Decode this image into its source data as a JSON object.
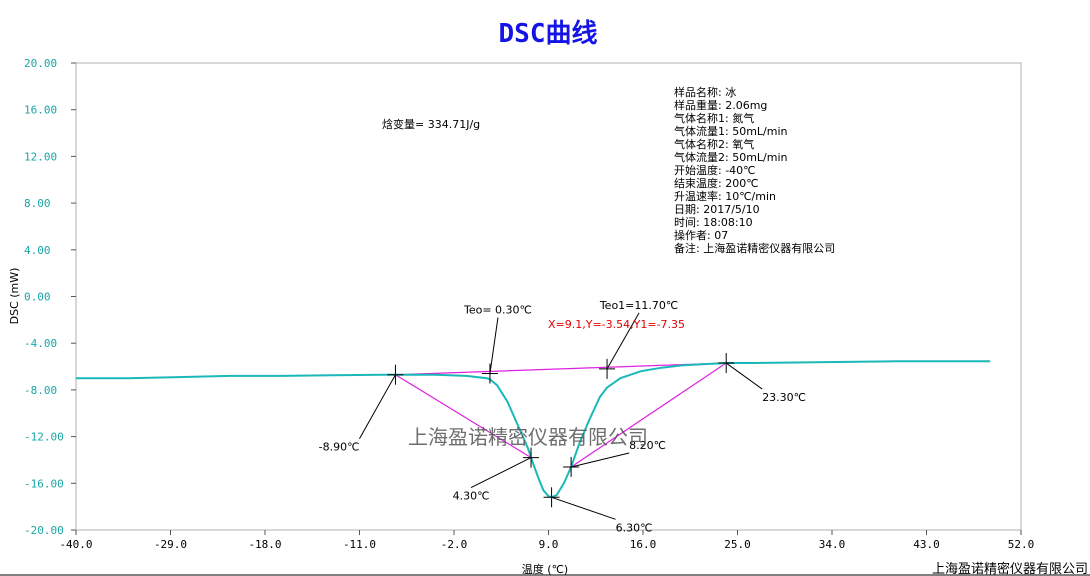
{
  "chart_data": {
    "type": "line",
    "title": "DSC曲线",
    "xlabel": "温度 (℃)",
    "ylabel": "DSC (mW)",
    "xlim": [
      -40,
      52
    ],
    "ylim": [
      -20,
      20
    ],
    "x_ticks": [
      "-40.0",
      "-29.0",
      "-18.0",
      "-11.0",
      "-2.0",
      "9.0",
      "16.0",
      "25.0",
      "34.0",
      "43.0",
      "52.0"
    ],
    "y_ticks": [
      "20.00",
      "16.00",
      "12.00",
      "8.00",
      "4.00",
      "0.00",
      "-4.00",
      "-8.00",
      "-12.00",
      "-16.00",
      "-20.00"
    ],
    "series": [
      {
        "color": "#1ab8b8",
        "x": [
          -40,
          -35,
          -30,
          -25,
          -20,
          -15,
          -10,
          -8.9,
          -5,
          -2,
          0,
          0.3,
          1,
          2,
          3,
          4,
          4.3,
          5,
          5.5,
          6,
          6.3,
          6.8,
          7.5,
          8.2,
          9,
          10,
          11,
          11.7,
          13,
          15,
          17,
          19,
          21,
          23.3,
          26,
          30,
          35,
          40,
          45,
          49
        ],
        "y": [
          -7.0,
          -7.0,
          -6.9,
          -6.8,
          -6.8,
          -6.75,
          -6.7,
          -6.7,
          -6.7,
          -6.8,
          -7.0,
          -7.1,
          -7.6,
          -9.0,
          -11.0,
          -13.0,
          -13.8,
          -15.5,
          -16.6,
          -17.1,
          -17.2,
          -17.0,
          -16.0,
          -14.6,
          -12.6,
          -10.5,
          -8.6,
          -7.8,
          -7.0,
          -6.4,
          -6.1,
          -5.9,
          -5.8,
          -5.7,
          -5.7,
          -5.65,
          -5.6,
          -5.55,
          -5.55,
          -5.55
        ]
      }
    ],
    "baseline": {
      "color": "#e020e0",
      "from": [
        -8.9,
        -6.7
      ],
      "to": [
        23.3,
        -5.7
      ]
    },
    "tangents": [
      {
        "color": "#e020e0",
        "from": [
          -8.9,
          -6.7
        ],
        "to": [
          4.3,
          -13.8
        ]
      },
      {
        "color": "#e020e0",
        "from": [
          23.3,
          -5.7
        ],
        "to": [
          8.2,
          -14.6
        ]
      }
    ],
    "markers": [
      {
        "x": -8.9,
        "y": -6.7,
        "label": "-8.90℃"
      },
      {
        "x": 0.3,
        "y": -6.6,
        "label": "Teo= 0.30℃"
      },
      {
        "x": 4.3,
        "y": -13.8,
        "label": "4.30℃"
      },
      {
        "x": 6.3,
        "y": -17.2,
        "label": "6.30℃"
      },
      {
        "x": 8.2,
        "y": -14.6,
        "label": "8.20℃"
      },
      {
        "x": 11.7,
        "y": -6.2,
        "label": "Teo1=11.70℃"
      },
      {
        "x": 23.3,
        "y": -5.7,
        "label": "23.30℃"
      }
    ],
    "annotations": {
      "enthalpy": "焓变量= 334.71J/g",
      "cursor": "X=9.1,Y=-3.54,Y1=-7.35"
    },
    "info_lines": [
      "样品名称: 冰",
      "样品重量: 2.06mg",
      "气体名称1: 氮气",
      "气体流量1: 50mL/min",
      "气体名称2: 氧气",
      "气体流量2: 50mL/min",
      "开始温度: -40℃",
      "结束温度: 200℃",
      "升温速率: 10℃/min",
      "日期: 2017/5/10",
      "时间: 18:08:10",
      "操作者: 07",
      "备注: 上海盈诺精密仪器有限公司"
    ],
    "watermark": "上海盈诺精密仪器有限公司",
    "footer": "上海盈诺精密仪器有限公司",
    "grid": false,
    "legend": "none"
  }
}
